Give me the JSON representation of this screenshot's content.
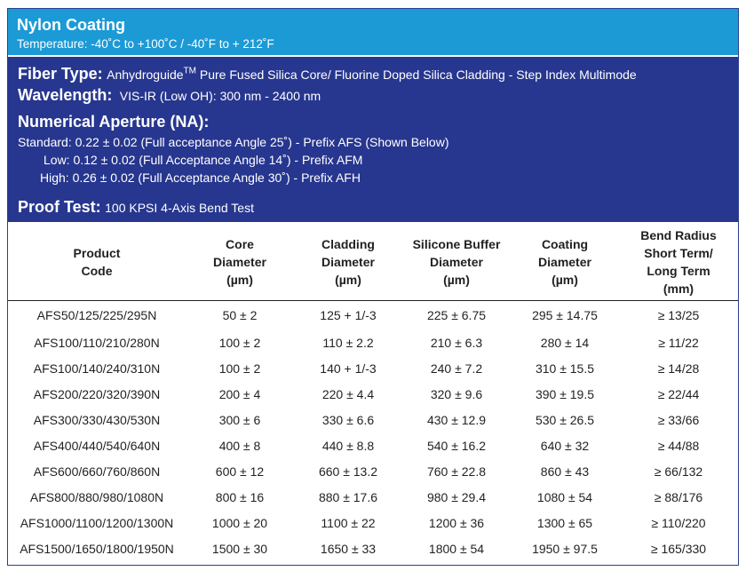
{
  "header": {
    "title": "Nylon Coating",
    "temperature": "Temperature: -40˚C to +100˚C / -40˚F to + 212˚F"
  },
  "specs": {
    "fiber_label": "Fiber Type:",
    "fiber_brand": "Anhydroguide",
    "fiber_tm": "TM",
    "fiber_value": " Pure Fused Silica Core/ Fluorine Doped Silica Cladding - Step Index Multimode",
    "wavelength_label": "Wavelength:",
    "wavelength_value": "VIS-IR (Low OH): 300 nm - 2400 nm",
    "na_label": "Numerical Aperture (NA):",
    "na_standard": "Standard: 0.22 ± 0.02 (Full acceptance Angle 25˚) - Prefix AFS (Shown Below)",
    "na_low": "Low: 0.12 ± 0.02 (Full Acceptance Angle 14˚) - Prefix AFM",
    "na_high": "High: 0.26 ± 0.02 (Full Acceptance Angle 30˚) - Prefix AFH",
    "proof_label": "Proof Test:",
    "proof_value": "100 KPSI 4-Axis Bend Test"
  },
  "table": {
    "headers": [
      [
        "Product",
        "Code"
      ],
      [
        "Core",
        "Diameter",
        "(µm)"
      ],
      [
        "Cladding",
        "Diameter",
        "(µm)"
      ],
      [
        "Silicone Buffer",
        "Diameter",
        "(µm)"
      ],
      [
        "Coating",
        "Diameter",
        "(µm)"
      ],
      [
        "Bend Radius",
        "Short Term/",
        "Long Term",
        "(mm)"
      ]
    ],
    "rows": [
      [
        "AFS50/125/225/295N",
        "50 ± 2",
        "125 + 1/-3",
        "225 ± 6.75",
        "295 ± 14.75",
        "≥ 13/25"
      ],
      [
        "AFS100/110/210/280N",
        "100 ± 2",
        "110 ± 2.2",
        "210 ± 6.3",
        "280 ± 14",
        "≥ 11/22"
      ],
      [
        "AFS100/140/240/310N",
        "100 ± 2",
        "140 + 1/-3",
        "240 ± 7.2",
        "310 ± 15.5",
        "≥ 14/28"
      ],
      [
        "AFS200/220/320/390N",
        "200 ± 4",
        "220 ± 4.4",
        "320 ± 9.6",
        "390 ± 19.5",
        "≥ 22/44"
      ],
      [
        "AFS300/330/430/530N",
        "300 ± 6",
        "330 ± 6.6",
        "430 ± 12.9",
        "530 ± 26.5",
        "≥ 33/66"
      ],
      [
        "AFS400/440/540/640N",
        "400 ± 8",
        "440 ± 8.8",
        "540 ± 16.2",
        "640 ± 32",
        "≥ 44/88"
      ],
      [
        "AFS600/660/760/860N",
        "600 ± 12",
        "660 ± 13.2",
        "760 ± 22.8",
        "860 ± 43",
        "≥ 66/132"
      ],
      [
        "AFS800/880/980/1080N",
        "800 ± 16",
        "880 ± 17.6",
        "980 ± 29.4",
        "1080 ± 54",
        "≥ 88/176"
      ],
      [
        "AFS1000/1100/1200/1300N",
        "1000 ± 20",
        "1100 ± 22",
        "1200 ± 36",
        "1300 ± 65",
        "≥ 110/220"
      ],
      [
        "AFS1500/1650/1800/1950N",
        "1500 ± 30",
        "1650 ± 33",
        "1800 ± 54",
        "1950 ± 97.5",
        "≥ 165/330"
      ]
    ]
  },
  "colors": {
    "title_bar": "#1c9ad6",
    "spec_panel": "#27378f"
  }
}
